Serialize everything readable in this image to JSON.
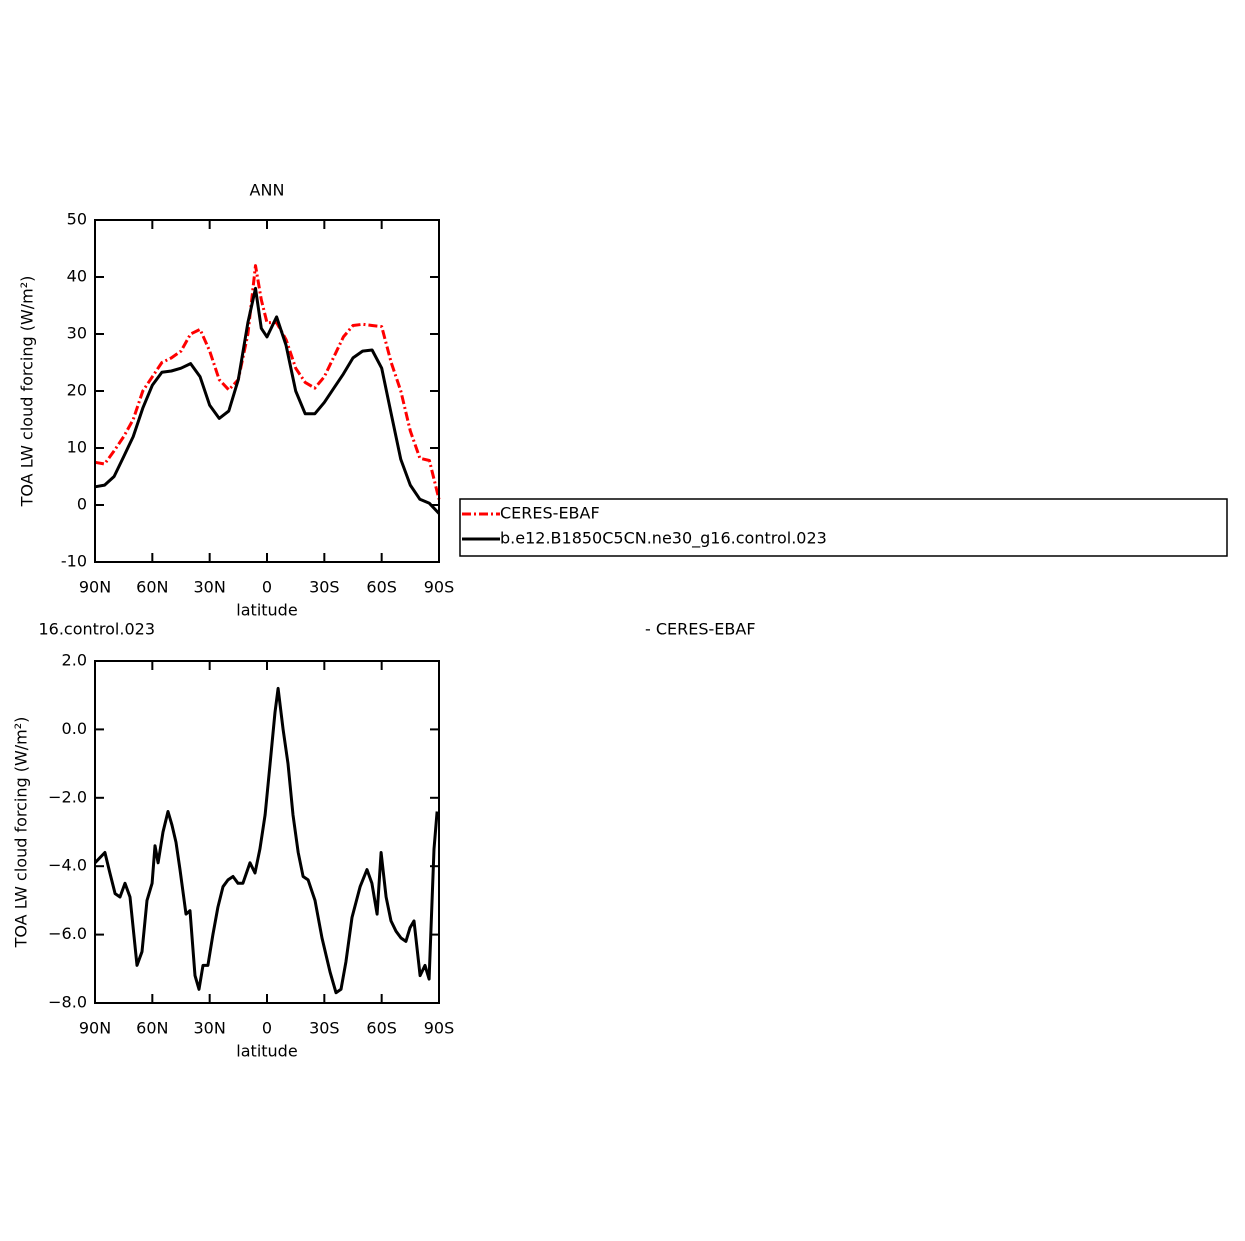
{
  "chart_data": [
    {
      "type": "line",
      "title": "ANN",
      "x_label": "latitude",
      "y_label": "TOA LW cloud forcing (W/m²)",
      "x": [
        90,
        85,
        80,
        75,
        70,
        65,
        60,
        55,
        50,
        45,
        40,
        35,
        30,
        25,
        20,
        15,
        10,
        6,
        3,
        0,
        -5,
        -10,
        -15,
        -20,
        -25,
        -30,
        -35,
        -40,
        -45,
        -50,
        -55,
        -60,
        -65,
        -70,
        -75,
        -80,
        -85,
        -90
      ],
      "series": [
        {
          "name": "CERES-EBAF",
          "color": "#ff0000",
          "line_style": "dashed",
          "values": [
            7.5,
            7.2,
            9.5,
            12,
            15,
            20,
            22.5,
            25,
            25.8,
            27,
            30,
            30.8,
            27,
            22,
            20.2,
            22,
            30,
            42,
            36,
            32,
            32,
            29,
            24,
            21.5,
            20.5,
            22.5,
            26,
            29.5,
            31.5,
            31.7,
            31.5,
            31.3,
            25,
            20,
            13,
            8.2,
            7.8,
            1
          ]
        },
        {
          "name": "b.e12.B1850C5CN.ne30_g16.control.023",
          "color": "#000000",
          "line_style": "solid",
          "values": [
            3.2,
            3.5,
            5,
            8.5,
            12,
            17,
            21,
            23.3,
            23.5,
            24,
            24.8,
            22.5,
            17.5,
            15.2,
            16.5,
            22,
            32,
            38,
            31,
            29.5,
            33,
            28,
            20,
            16,
            16,
            18,
            20.5,
            23,
            25.8,
            27,
            27.2,
            24,
            16,
            8,
            3.5,
            1,
            0.3,
            -1.5
          ]
        }
      ],
      "xlim": [
        90,
        -90
      ],
      "xticks": [
        {
          "value": 90,
          "label": "90N"
        },
        {
          "value": 60,
          "label": "60N"
        },
        {
          "value": 30,
          "label": "30N"
        },
        0,
        {
          "value": -30,
          "label": "30S"
        },
        {
          "value": -60,
          "label": "60S"
        },
        {
          "value": -90,
          "label": "90S"
        }
      ],
      "ylim": [
        -10,
        50
      ],
      "yticks": [
        -10,
        0,
        10,
        20,
        30,
        40,
        50
      ],
      "legend": "right"
    },
    {
      "type": "line",
      "annotations": [
        "16.control.023",
        "- CERES-EBAF"
      ],
      "x_label": "latitude",
      "y_label": "TOA LW cloud forcing (W/m²)",
      "x": [
        90,
        84.8,
        82.2,
        79.5,
        76.9,
        74.3,
        71.7,
        68,
        65.4,
        62.8,
        60.1,
        58.6,
        57,
        54.4,
        51.8,
        49.7,
        47.6,
        45.5,
        42.4,
        40.3,
        37.7,
        35.6,
        33.5,
        30.9,
        28.3,
        25.7,
        23,
        20.4,
        17.8,
        15.2,
        12.6,
        8.9,
        6.3,
        3.7,
        1,
        -1.6,
        -4.2,
        -5.8,
        -8.4,
        -11,
        -13.6,
        -16.3,
        -18.9,
        -21.5,
        -25.1,
        -28.8,
        -33,
        -36.1,
        -38.7,
        -41.3,
        -44.5,
        -48.7,
        -52.3,
        -54.9,
        -57.6,
        -59.7,
        -62.3,
        -64.9,
        -67.5,
        -70.1,
        -72.7,
        -74.8,
        -76.9,
        -80.1,
        -82.7,
        -84.8,
        -87.4,
        -89
      ],
      "values": [
        -3.9,
        -3.6,
        -4.2,
        -4.8,
        -4.9,
        -4.5,
        -4.9,
        -6.9,
        -6.5,
        -5,
        -4.5,
        -3.4,
        -3.9,
        -3,
        -2.4,
        -2.8,
        -3.3,
        -4.1,
        -5.4,
        -5.3,
        -7.2,
        -7.6,
        -6.9,
        -6.9,
        -6,
        -5.2,
        -4.6,
        -4.4,
        -4.3,
        -4.5,
        -4.5,
        -3.9,
        -4.2,
        -3.5,
        -2.5,
        -1,
        0.5,
        1.2,
        0,
        -1,
        -2.5,
        -3.6,
        -4.3,
        -4.4,
        -5,
        -6.1,
        -7.1,
        -7.7,
        -7.6,
        -6.8,
        -5.5,
        -4.6,
        -4.1,
        -4.5,
        -5.4,
        -3.6,
        -4.9,
        -5.6,
        -5.9,
        -6.1,
        -6.2,
        -5.8,
        -5.6,
        -7.2,
        -6.9,
        -7.3,
        -3.5,
        -2.4
      ],
      "color": "#000000",
      "xlim": [
        90,
        -90
      ],
      "xticks": [
        {
          "value": 90,
          "label": "90N"
        },
        {
          "value": 60,
          "label": "60N"
        },
        {
          "value": 30,
          "label": "30N"
        },
        0,
        {
          "value": -30,
          "label": "30S"
        },
        {
          "value": -60,
          "label": "60S"
        },
        {
          "value": -90,
          "label": "90S"
        }
      ],
      "ylim": [
        -8,
        2
      ],
      "yticks": [
        {
          "value": -8,
          "label": "−8.0"
        },
        {
          "value": -6,
          "label": "−6.0"
        },
        {
          "value": -4,
          "label": "−4.0"
        },
        {
          "value": -2,
          "label": "−2.0"
        },
        {
          "value": 0,
          "label": "0.0"
        },
        {
          "value": 2,
          "label": "2.0"
        }
      ]
    }
  ]
}
